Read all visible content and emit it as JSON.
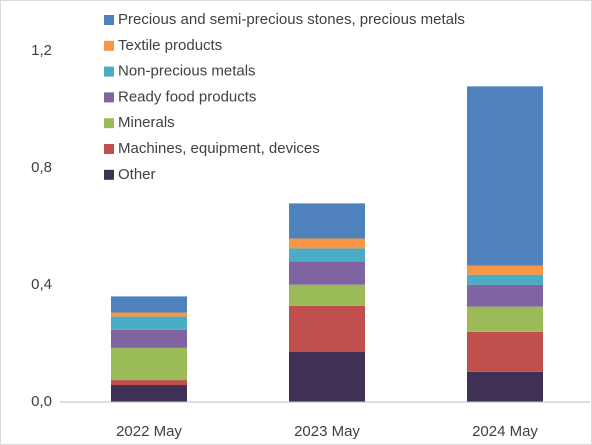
{
  "chart_data": {
    "type": "stacked_bar",
    "categories": [
      "2022 May",
      "2023 May",
      "2024 May"
    ],
    "series": [
      {
        "name": "Other",
        "color": "#3e3155",
        "values": [
          0.058,
          0.171,
          0.103
        ]
      },
      {
        "name": "Machines, equipment, devices",
        "color": "#c0504d",
        "values": [
          0.017,
          0.158,
          0.137
        ]
      },
      {
        "name": "Minerals",
        "color": "#9bbb59",
        "values": [
          0.11,
          0.072,
          0.086
        ]
      },
      {
        "name": "Ready food products",
        "color": "#8064a2",
        "values": [
          0.062,
          0.079,
          0.075
        ]
      },
      {
        "name": "Non-precious metals",
        "color": "#4bacc6",
        "values": [
          0.045,
          0.045,
          0.034
        ]
      },
      {
        "name": "Textile products",
        "color": "#f79646",
        "values": [
          0.014,
          0.034,
          0.031
        ]
      },
      {
        "name": "Precious and semi-precious stones, precious metals",
        "color": "#4f81bd",
        "values": [
          0.055,
          0.12,
          0.613
        ]
      }
    ],
    "ylim": [
      0,
      1.34
    ],
    "yticks": [
      {
        "value": 0,
        "label": "0,0"
      },
      {
        "value": 0.4,
        "label": "0,4"
      },
      {
        "value": 0.8,
        "label": "0,8"
      },
      {
        "value": 1.2,
        "label": "1,2"
      }
    ],
    "grid": false,
    "legend": "top-left"
  }
}
